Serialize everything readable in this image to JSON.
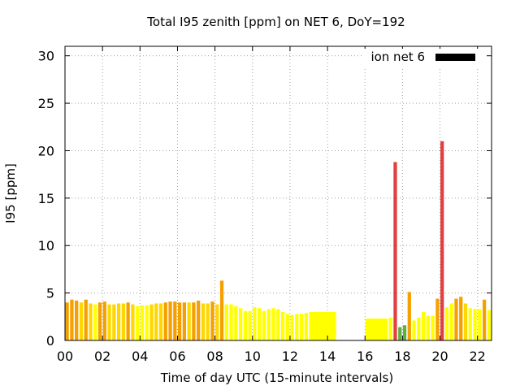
{
  "chart_data": {
    "type": "bar",
    "title": "Total I95 zenith [ppm] on NET 6, DoY=192",
    "xlabel": "Time of day UTC (15-minute intervals)",
    "ylabel": "I95 [ppm]",
    "xlim": [
      0,
      22.75
    ],
    "ylim": [
      0,
      31
    ],
    "x_ticks": [
      0,
      2,
      4,
      6,
      8,
      10,
      12,
      14,
      16,
      18,
      20,
      22
    ],
    "x_tick_labels": [
      "00",
      "02",
      "04",
      "06",
      "08",
      "10",
      "12",
      "14",
      "16",
      "18",
      "20",
      "22"
    ],
    "y_ticks": [
      0,
      5,
      10,
      15,
      20,
      25,
      30
    ],
    "y_tick_labels": [
      "0",
      "5",
      "10",
      "15",
      "20",
      "25",
      "30"
    ],
    "grid": true,
    "legend": {
      "label": "ion net 6",
      "position": "top-right",
      "color": "#000000"
    },
    "colors": {
      "yellow": "#ffff00",
      "light_orange": "#ffd700",
      "orange": "#f5a000",
      "red": "#e04040",
      "green": "#5fb040"
    },
    "series": [
      {
        "name": "ion net 6",
        "bars": [
          {
            "x": 0.0,
            "w": 0.25,
            "value": 4.0,
            "color": "orange"
          },
          {
            "x": 0.25,
            "w": 0.25,
            "value": 4.3,
            "color": "orange"
          },
          {
            "x": 0.5,
            "w": 0.25,
            "value": 4.2,
            "color": "orange"
          },
          {
            "x": 0.75,
            "w": 0.25,
            "value": 4.0,
            "color": "light_orange"
          },
          {
            "x": 1.0,
            "w": 0.25,
            "value": 4.3,
            "color": "orange"
          },
          {
            "x": 1.25,
            "w": 0.25,
            "value": 3.9,
            "color": "light_orange"
          },
          {
            "x": 1.5,
            "w": 0.25,
            "value": 3.8,
            "color": "yellow"
          },
          {
            "x": 1.75,
            "w": 0.25,
            "value": 4.0,
            "color": "orange"
          },
          {
            "x": 2.0,
            "w": 0.25,
            "value": 4.1,
            "color": "orange"
          },
          {
            "x": 2.25,
            "w": 0.25,
            "value": 3.8,
            "color": "light_orange"
          },
          {
            "x": 2.5,
            "w": 0.25,
            "value": 3.8,
            "color": "light_orange"
          },
          {
            "x": 2.75,
            "w": 0.25,
            "value": 3.9,
            "color": "light_orange"
          },
          {
            "x": 3.0,
            "w": 0.25,
            "value": 3.9,
            "color": "light_orange"
          },
          {
            "x": 3.25,
            "w": 0.25,
            "value": 4.0,
            "color": "orange"
          },
          {
            "x": 3.5,
            "w": 0.25,
            "value": 3.8,
            "color": "light_orange"
          },
          {
            "x": 3.75,
            "w": 0.25,
            "value": 3.6,
            "color": "yellow"
          },
          {
            "x": 4.0,
            "w": 0.25,
            "value": 3.7,
            "color": "yellow"
          },
          {
            "x": 4.25,
            "w": 0.25,
            "value": 3.7,
            "color": "yellow"
          },
          {
            "x": 4.5,
            "w": 0.25,
            "value": 3.8,
            "color": "light_orange"
          },
          {
            "x": 4.75,
            "w": 0.25,
            "value": 3.9,
            "color": "light_orange"
          },
          {
            "x": 5.0,
            "w": 0.25,
            "value": 3.9,
            "color": "light_orange"
          },
          {
            "x": 5.25,
            "w": 0.25,
            "value": 4.0,
            "color": "orange"
          },
          {
            "x": 5.5,
            "w": 0.25,
            "value": 4.1,
            "color": "orange"
          },
          {
            "x": 5.75,
            "w": 0.25,
            "value": 4.1,
            "color": "orange"
          },
          {
            "x": 6.0,
            "w": 0.25,
            "value": 4.0,
            "color": "orange"
          },
          {
            "x": 6.25,
            "w": 0.25,
            "value": 4.0,
            "color": "orange"
          },
          {
            "x": 6.5,
            "w": 0.25,
            "value": 4.0,
            "color": "light_orange"
          },
          {
            "x": 6.75,
            "w": 0.25,
            "value": 4.0,
            "color": "orange"
          },
          {
            "x": 7.0,
            "w": 0.25,
            "value": 4.2,
            "color": "orange"
          },
          {
            "x": 7.25,
            "w": 0.25,
            "value": 3.9,
            "color": "light_orange"
          },
          {
            "x": 7.5,
            "w": 0.25,
            "value": 3.9,
            "color": "light_orange"
          },
          {
            "x": 7.75,
            "w": 0.25,
            "value": 4.1,
            "color": "orange"
          },
          {
            "x": 8.0,
            "w": 0.25,
            "value": 3.8,
            "color": "light_orange"
          },
          {
            "x": 8.25,
            "w": 0.25,
            "value": 6.3,
            "color": "orange"
          },
          {
            "x": 8.5,
            "w": 0.25,
            "value": 3.8,
            "color": "yellow"
          },
          {
            "x": 8.75,
            "w": 0.25,
            "value": 3.8,
            "color": "yellow"
          },
          {
            "x": 9.0,
            "w": 0.25,
            "value": 3.6,
            "color": "yellow"
          },
          {
            "x": 9.25,
            "w": 0.25,
            "value": 3.4,
            "color": "yellow"
          },
          {
            "x": 9.5,
            "w": 0.25,
            "value": 3.1,
            "color": "yellow"
          },
          {
            "x": 9.75,
            "w": 0.25,
            "value": 3.1,
            "color": "yellow"
          },
          {
            "x": 10.0,
            "w": 0.25,
            "value": 3.5,
            "color": "yellow"
          },
          {
            "x": 10.25,
            "w": 0.25,
            "value": 3.4,
            "color": "yellow"
          },
          {
            "x": 10.5,
            "w": 0.25,
            "value": 3.1,
            "color": "yellow"
          },
          {
            "x": 10.75,
            "w": 0.25,
            "value": 3.3,
            "color": "yellow"
          },
          {
            "x": 11.0,
            "w": 0.25,
            "value": 3.4,
            "color": "yellow"
          },
          {
            "x": 11.25,
            "w": 0.25,
            "value": 3.3,
            "color": "yellow"
          },
          {
            "x": 11.5,
            "w": 0.25,
            "value": 3.0,
            "color": "yellow"
          },
          {
            "x": 11.75,
            "w": 0.25,
            "value": 2.8,
            "color": "yellow"
          },
          {
            "x": 12.0,
            "w": 0.25,
            "value": 2.7,
            "color": "yellow"
          },
          {
            "x": 12.25,
            "w": 0.25,
            "value": 2.8,
            "color": "yellow"
          },
          {
            "x": 12.5,
            "w": 0.25,
            "value": 2.8,
            "color": "yellow"
          },
          {
            "x": 12.75,
            "w": 0.25,
            "value": 2.9,
            "color": "yellow"
          },
          {
            "x": 13.0,
            "w": 1.5,
            "value": 3.0,
            "color": "yellow"
          },
          {
            "x": 16.0,
            "w": 1.25,
            "value": 2.3,
            "color": "yellow"
          },
          {
            "x": 17.25,
            "w": 0.25,
            "value": 2.4,
            "color": "yellow"
          },
          {
            "x": 17.5,
            "w": 0.25,
            "value": 18.8,
            "color": "red"
          },
          {
            "x": 17.75,
            "w": 0.25,
            "value": 1.4,
            "color": "green"
          },
          {
            "x": 18.0,
            "w": 0.25,
            "value": 1.6,
            "color": "green"
          },
          {
            "x": 18.25,
            "w": 0.25,
            "value": 5.1,
            "color": "orange"
          },
          {
            "x": 18.5,
            "w": 0.25,
            "value": 2.1,
            "color": "yellow"
          },
          {
            "x": 18.75,
            "w": 0.25,
            "value": 2.4,
            "color": "yellow"
          },
          {
            "x": 19.0,
            "w": 0.25,
            "value": 3.0,
            "color": "yellow"
          },
          {
            "x": 19.25,
            "w": 0.25,
            "value": 2.6,
            "color": "yellow"
          },
          {
            "x": 19.5,
            "w": 0.25,
            "value": 2.6,
            "color": "yellow"
          },
          {
            "x": 19.75,
            "w": 0.25,
            "value": 4.4,
            "color": "orange"
          },
          {
            "x": 20.0,
            "w": 0.25,
            "value": 21.0,
            "color": "red"
          },
          {
            "x": 20.25,
            "w": 0.25,
            "value": 3.5,
            "color": "yellow"
          },
          {
            "x": 20.5,
            "w": 0.25,
            "value": 3.9,
            "color": "yellow"
          },
          {
            "x": 20.75,
            "w": 0.25,
            "value": 4.4,
            "color": "orange"
          },
          {
            "x": 21.0,
            "w": 0.25,
            "value": 4.6,
            "color": "orange"
          },
          {
            "x": 21.25,
            "w": 0.25,
            "value": 3.9,
            "color": "light_orange"
          },
          {
            "x": 21.5,
            "w": 0.25,
            "value": 3.4,
            "color": "yellow"
          },
          {
            "x": 21.75,
            "w": 0.25,
            "value": 3.3,
            "color": "yellow"
          },
          {
            "x": 22.0,
            "w": 0.25,
            "value": 3.3,
            "color": "yellow"
          },
          {
            "x": 22.25,
            "w": 0.25,
            "value": 4.3,
            "color": "orange"
          },
          {
            "x": 22.5,
            "w": 0.25,
            "value": 3.2,
            "color": "yellow"
          }
        ]
      }
    ]
  }
}
